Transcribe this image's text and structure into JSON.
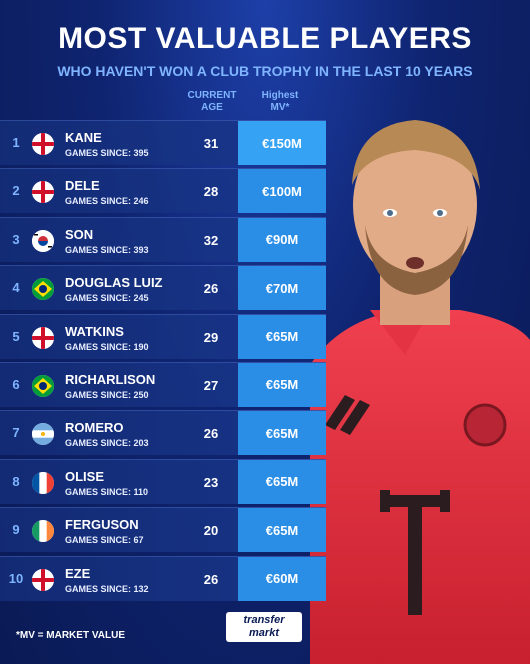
{
  "title": "MOST VALUABLE PLAYERS",
  "subtitle": "WHO HAVEN'T WON A CLUB TROPHY IN THE LAST 10 YEARS",
  "columns": {
    "age_line1": "CURRENT",
    "age_line2": "AGE",
    "mv_line1": "Highest",
    "mv_line2": "MV*"
  },
  "players": [
    {
      "rank": "1",
      "name": "KANE",
      "games": "GAMES SINCE: 395",
      "age": "31",
      "mv": "€150M",
      "flag": "england-flag-icon"
    },
    {
      "rank": "2",
      "name": "DELE",
      "games": "GAMES SINCE: 246",
      "age": "28",
      "mv": "€100M",
      "flag": "england-flag-icon"
    },
    {
      "rank": "3",
      "name": "SON",
      "games": "GAMES SINCE: 393",
      "age": "32",
      "mv": "€90M",
      "flag": "south-korea-flag-icon"
    },
    {
      "rank": "4",
      "name": "DOUGLAS LUIZ",
      "games": "GAMES SINCE: 245",
      "age": "26",
      "mv": "€70M",
      "flag": "brazil-flag-icon"
    },
    {
      "rank": "5",
      "name": "WATKINS",
      "games": "GAMES SINCE: 190",
      "age": "29",
      "mv": "€65M",
      "flag": "england-flag-icon"
    },
    {
      "rank": "6",
      "name": "RICHARLISON",
      "games": "GAMES SINCE: 250",
      "age": "27",
      "mv": "€65M",
      "flag": "brazil-flag-icon"
    },
    {
      "rank": "7",
      "name": "ROMERO",
      "games": "GAMES SINCE: 203",
      "age": "26",
      "mv": "€65M",
      "flag": "argentina-flag-icon"
    },
    {
      "rank": "8",
      "name": "OLISE",
      "games": "GAMES SINCE: 110",
      "age": "23",
      "mv": "€65M",
      "flag": "france-flag-icon"
    },
    {
      "rank": "9",
      "name": "FERGUSON",
      "games": "GAMES SINCE: 67",
      "age": "20",
      "mv": "€65M",
      "flag": "ireland-flag-icon"
    },
    {
      "rank": "10",
      "name": "EZE",
      "games": "GAMES SINCE: 132",
      "age": "26",
      "mv": "€60M",
      "flag": "england-flag-icon"
    }
  ],
  "footnote": "*MV = MARKET VALUE",
  "logo": {
    "line1": "transfer",
    "line2": "markt"
  },
  "colors": {
    "background": "#0f2470",
    "accent": "#7fb4ff",
    "value_box": "#2a8ee6",
    "jersey": "#e8384a"
  }
}
